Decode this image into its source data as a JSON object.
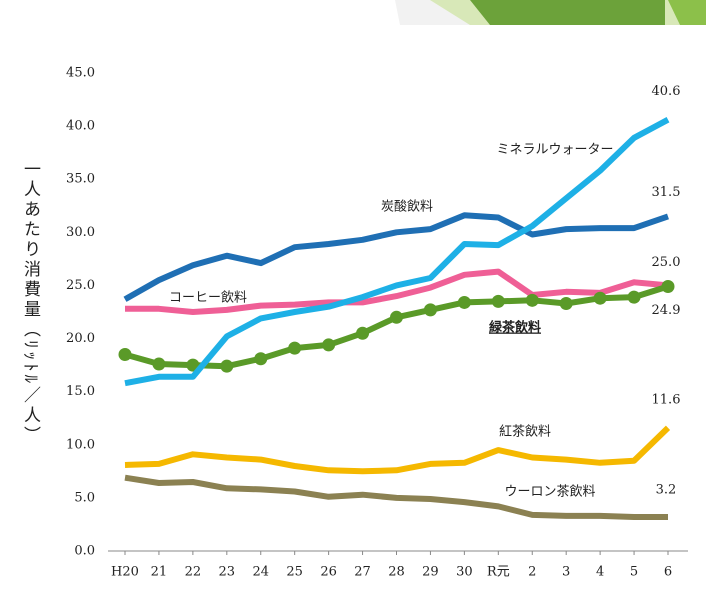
{
  "chart_data": {
    "type": "line",
    "y_label": "一人あたり消費量（ﾘｯﾄﾙ／人）",
    "categories": [
      "H20",
      "21",
      "22",
      "23",
      "24",
      "25",
      "26",
      "27",
      "28",
      "29",
      "30",
      "R元",
      "2",
      "3",
      "4",
      "5",
      "6"
    ],
    "ylim": [
      0,
      45
    ],
    "yticks": [
      {
        "value": 0,
        "label": "0.0"
      },
      {
        "value": 5,
        "label": "5.0"
      },
      {
        "value": 10,
        "label": "10.0"
      },
      {
        "value": 15,
        "label": "15.0"
      },
      {
        "value": 20,
        "label": "20.0"
      },
      {
        "value": 25,
        "label": "25.0"
      },
      {
        "value": 30,
        "label": "30.0"
      },
      {
        "value": 35,
        "label": "35.0"
      },
      {
        "value": 40,
        "label": "40.0"
      },
      {
        "value": 45,
        "label": "45.0"
      }
    ],
    "grid": false,
    "series": [
      {
        "name": "ウーロン茶飲料",
        "color": "#8b8152",
        "values": [
          6.9,
          6.4,
          6.5,
          5.9,
          5.8,
          5.6,
          5.1,
          5.3,
          5.0,
          4.9,
          4.6,
          4.2,
          3.4,
          3.3,
          3.3,
          3.2,
          3.2
        ],
        "value_labels": [
          null,
          null,
          null,
          null,
          null,
          null,
          null,
          null,
          null,
          null,
          null,
          null,
          null,
          null,
          null,
          null,
          "3.2"
        ]
      },
      {
        "name": "紅茶飲料",
        "color": "#f5b800",
        "values": [
          8.1,
          8.2,
          9.1,
          8.8,
          8.6,
          8.0,
          7.6,
          7.5,
          7.6,
          8.2,
          8.3,
          9.5,
          8.8,
          8.6,
          8.3,
          8.5,
          11.6
        ],
        "value_labels": [
          null,
          null,
          null,
          null,
          null,
          null,
          null,
          null,
          null,
          null,
          null,
          null,
          null,
          null,
          null,
          null,
          "11.6"
        ]
      },
      {
        "name": "コーヒー飲料",
        "color": "#ef5f96",
        "values": [
          22.8,
          22.8,
          22.5,
          22.7,
          23.1,
          23.2,
          23.4,
          23.4,
          24.0,
          24.8,
          26.0,
          26.3,
          24.1,
          24.4,
          24.3,
          25.3,
          25.0
        ],
        "value_labels": [
          null,
          null,
          null,
          null,
          null,
          null,
          null,
          null,
          null,
          null,
          null,
          null,
          null,
          null,
          null,
          null,
          "25.0"
        ]
      },
      {
        "name": "緑茶飲料",
        "color": "#5a9a28",
        "markers": true,
        "values": [
          18.5,
          17.6,
          17.5,
          17.4,
          18.1,
          19.1,
          19.4,
          20.5,
          22.0,
          22.7,
          23.4,
          23.5,
          23.6,
          23.3,
          23.8,
          23.9,
          24.9
        ],
        "value_labels": [
          null,
          null,
          null,
          null,
          null,
          null,
          null,
          null,
          null,
          null,
          null,
          null,
          null,
          null,
          null,
          null,
          "24.9"
        ]
      },
      {
        "name": "炭酸飲料",
        "color": "#1f6fb4",
        "values": [
          23.7,
          25.5,
          26.9,
          27.8,
          27.1,
          28.6,
          28.9,
          29.3,
          30.0,
          30.3,
          31.6,
          31.4,
          29.8,
          30.3,
          30.4,
          30.4,
          31.5
        ],
        "value_labels": [
          null,
          null,
          null,
          null,
          null,
          null,
          null,
          null,
          null,
          null,
          null,
          null,
          null,
          null,
          null,
          null,
          "31.5"
        ]
      },
      {
        "name": "ミネラルウォーター",
        "color": "#1eb0e6",
        "values": [
          15.8,
          16.4,
          16.4,
          20.2,
          21.9,
          22.5,
          23.0,
          23.9,
          25.0,
          25.7,
          28.9,
          28.8,
          30.6,
          33.2,
          35.8,
          38.9,
          40.6
        ],
        "value_labels": [
          null,
          null,
          null,
          null,
          null,
          null,
          null,
          null,
          null,
          null,
          null,
          null,
          null,
          null,
          null,
          null,
          "40.6"
        ]
      }
    ]
  }
}
